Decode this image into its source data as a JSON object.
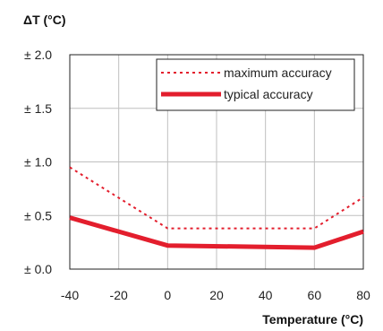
{
  "chart_data": {
    "type": "line",
    "title": "",
    "ylabel": "ΔT (°C)",
    "xlabel": "Temperature (°C)",
    "xlim": [
      -40,
      80
    ],
    "ylim": [
      0,
      2.0
    ],
    "x_ticks": [
      -40,
      -20,
      0,
      20,
      40,
      60,
      80
    ],
    "x_tick_labels": [
      "-40",
      "-20",
      "0",
      "20",
      "40",
      "60",
      "80"
    ],
    "y_ticks": [
      0,
      0.5,
      1.0,
      1.5,
      2.0
    ],
    "y_tick_labels": [
      "± 0.0",
      "± 0.5",
      "± 1.0",
      "± 1.5",
      "± 2.0"
    ],
    "grid": true,
    "legend_position": "top-right",
    "series": [
      {
        "name": "maximum accuracy",
        "style": "dotted",
        "color": "#e31e2d",
        "x": [
          -40,
          0,
          60,
          80
        ],
        "y": [
          0.95,
          0.38,
          0.38,
          0.67
        ]
      },
      {
        "name": "typical accuracy",
        "style": "solid",
        "color": "#e31e2d",
        "x": [
          -40,
          0,
          60,
          80
        ],
        "y": [
          0.48,
          0.22,
          0.2,
          0.35
        ]
      }
    ]
  }
}
